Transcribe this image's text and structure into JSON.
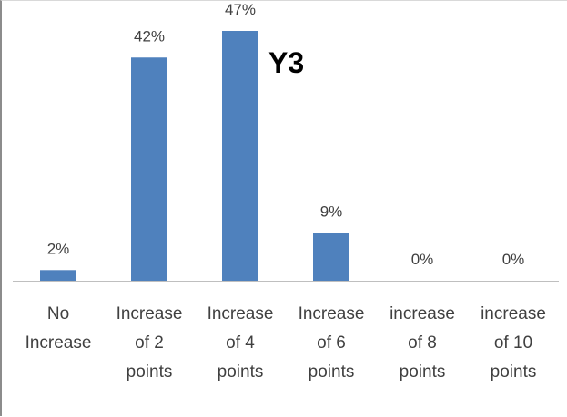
{
  "chart_data": {
    "type": "bar",
    "title": "Y3",
    "categories": [
      [
        "No",
        "Increase"
      ],
      [
        "Increase",
        "of 2",
        "points"
      ],
      [
        "Increase",
        "of 4",
        "points"
      ],
      [
        "Increase",
        "of 6",
        "points"
      ],
      [
        "increase",
        "of 8",
        "points"
      ],
      [
        "increase",
        "of 10",
        "points"
      ]
    ],
    "values": [
      2,
      42,
      47,
      9,
      0,
      0
    ],
    "data_labels": [
      "2%",
      "42%",
      "47%",
      "9%",
      "0%",
      "0%"
    ],
    "ylim": [
      0,
      47
    ],
    "grid": false,
    "legend": "none",
    "bar_color": "#4f81bd",
    "axis_color": "#bfbfbf"
  }
}
